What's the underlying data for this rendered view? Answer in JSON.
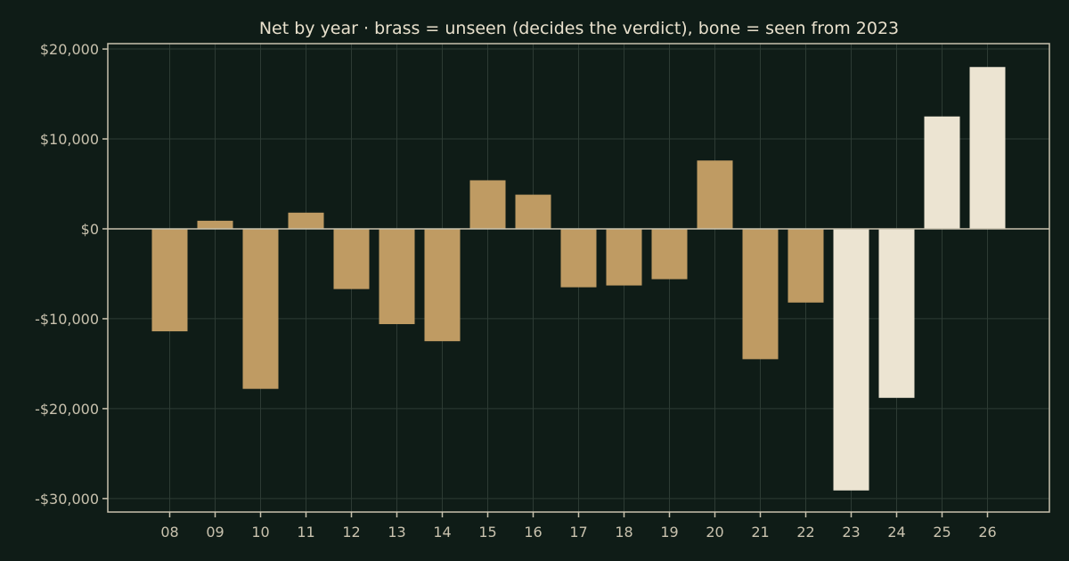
{
  "chart_data": {
    "type": "bar",
    "title": "Net by year  ·  brass = unseen (decides the verdict), bone = seen from 2023",
    "xlabel": "",
    "ylabel": "",
    "categories": [
      "08",
      "09",
      "10",
      "11",
      "12",
      "13",
      "14",
      "15",
      "16",
      "17",
      "18",
      "19",
      "20",
      "21",
      "22",
      "23",
      "24",
      "25",
      "26"
    ],
    "values": [
      -11400,
      900,
      -17800,
      1800,
      -6700,
      -10600,
      -12500,
      5400,
      3800,
      -6500,
      -6300,
      -5600,
      7600,
      -14500,
      -8200,
      -29100,
      -18800,
      12500,
      18000
    ],
    "groups": [
      "unseen",
      "unseen",
      "unseen",
      "unseen",
      "unseen",
      "unseen",
      "unseen",
      "unseen",
      "unseen",
      "unseen",
      "unseen",
      "unseen",
      "unseen",
      "unseen",
      "unseen",
      "seen",
      "seen",
      "seen",
      "seen"
    ],
    "colors": {
      "unseen": "#bf9b63",
      "seen": "#ece4d2"
    },
    "ylim": [
      -31500,
      20600
    ],
    "yticks": [
      20000,
      10000,
      0,
      -10000,
      -20000,
      -30000
    ],
    "ytick_labels": [
      "$20,000",
      "$10,000",
      "$0",
      "-$10,000",
      "-$20,000",
      "-$30,000"
    ],
    "grid": true,
    "legend": "none"
  }
}
